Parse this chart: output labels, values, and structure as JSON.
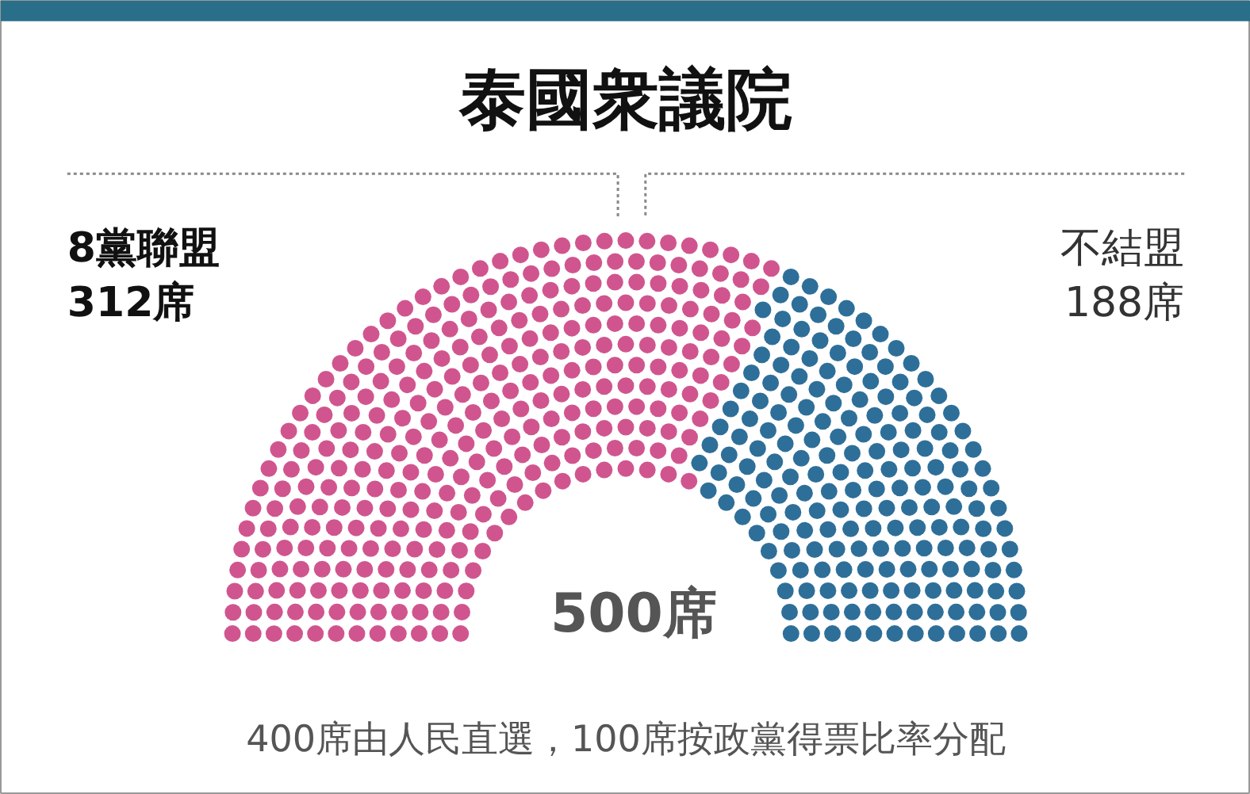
{
  "chart_data": {
    "type": "other",
    "title": "泰國衆議院",
    "categories": [
      "8黨聯盟",
      "不結盟"
    ],
    "values": [
      312,
      188
    ],
    "value_labels": [
      "312席",
      "188席"
    ],
    "colors": [
      "#d0558f",
      "#2e6f99"
    ],
    "annotations": [
      "500席",
      "400席由人民直選，100席按政黨得票比率分配"
    ]
  }
}
